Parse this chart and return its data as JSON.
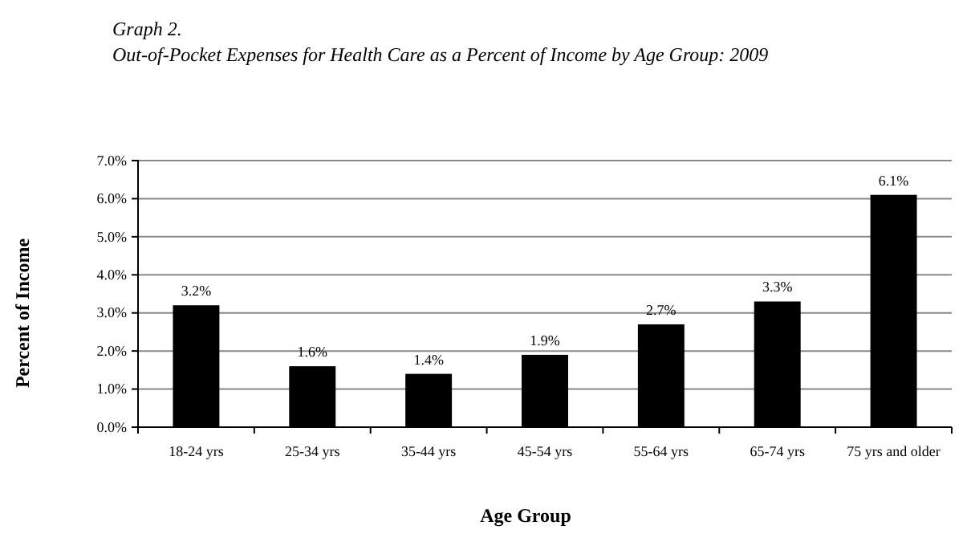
{
  "chart_data": {
    "type": "bar",
    "title": "Graph 2.",
    "subtitle": "Out-of-Pocket Expenses for Health Care as a Percent of Income by Age Group: 2009",
    "xlabel": "Age Group",
    "ylabel": "Percent of Income",
    "categories": [
      "18-24 yrs",
      "25-34 yrs",
      "35-44 yrs",
      "45-54 yrs",
      "55-64 yrs",
      "65-74 yrs",
      "75 yrs and older"
    ],
    "values": [
      3.2,
      1.6,
      1.4,
      1.9,
      2.7,
      3.3,
      6.1
    ],
    "value_labels": [
      "3.2%",
      "1.6%",
      "1.4%",
      "1.9%",
      "2.7%",
      "3.3%",
      "6.1%"
    ],
    "color": "#000000",
    "ylim": [
      0,
      7
    ],
    "yticks": [
      {
        "value": 0,
        "label": "0.0%"
      },
      {
        "value": 1,
        "label": "1.0%"
      },
      {
        "value": 2,
        "label": "2.0%"
      },
      {
        "value": 3,
        "label": "3.0%"
      },
      {
        "value": 4,
        "label": "4.0%"
      },
      {
        "value": 5,
        "label": "5.0%"
      },
      {
        "value": 6,
        "label": "6.0%"
      },
      {
        "value": 7,
        "label": "7.0%"
      }
    ],
    "grid": "y"
  }
}
